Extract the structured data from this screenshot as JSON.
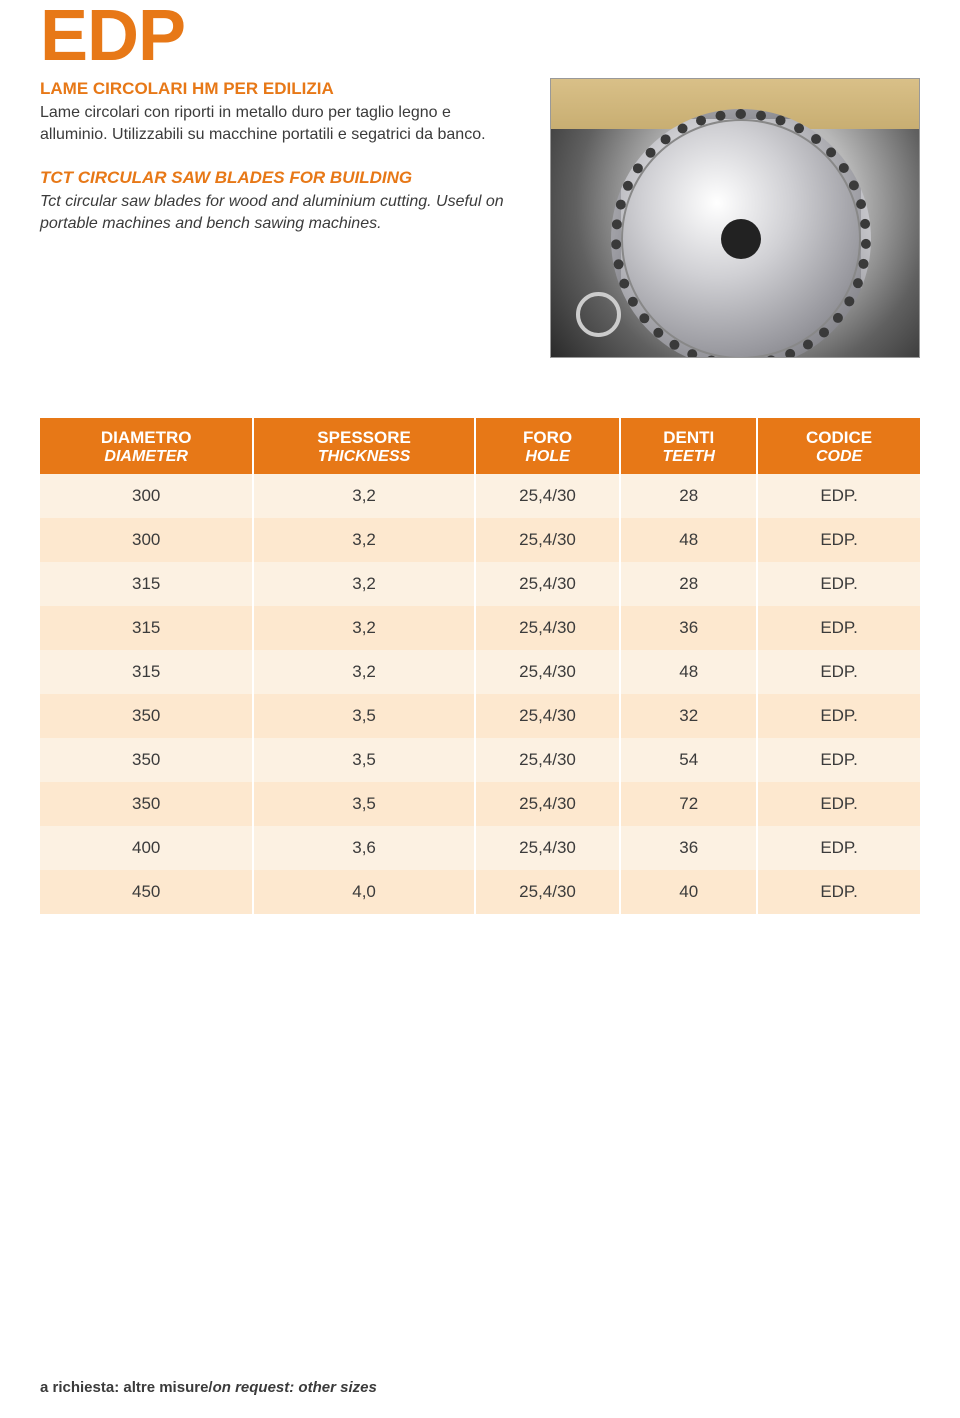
{
  "page": {
    "title": "EDP",
    "subtitle_it": "LAME CIRCOLARI HM PER EDILIZIA",
    "desc_it": "Lame circolari con riporti in metallo duro per taglio legno e alluminio. Utilizzabili su macchine portatili e segatrici da banco.",
    "subtitle_en": "TCT CIRCULAR SAW BLADES FOR BUILDING",
    "desc_en": "Tct circular saw blades for wood and aluminium cutting. Useful on portable machines and bench sawing machines."
  },
  "colors": {
    "accent": "#e77817",
    "row_odd": "#fcf1e2",
    "row_even": "#fde8cf",
    "header_text": "#ffffff",
    "body_text": "#3b3b3b"
  },
  "table": {
    "columns": [
      {
        "label_it": "DIAMETRO",
        "label_en": "DIAMETER"
      },
      {
        "label_it": "SPESSORE",
        "label_en": "THICKNESS"
      },
      {
        "label_it": "FORO",
        "label_en": "HOLE"
      },
      {
        "label_it": "DENTI",
        "label_en": "TEETH"
      },
      {
        "label_it": "CODICE",
        "label_en": "CODE"
      }
    ],
    "rows": [
      [
        "300",
        "3,2",
        "25,4/30",
        "28",
        "EDP."
      ],
      [
        "300",
        "3,2",
        "25,4/30",
        "48",
        "EDP."
      ],
      [
        "315",
        "3,2",
        "25,4/30",
        "28",
        "EDP."
      ],
      [
        "315",
        "3,2",
        "25,4/30",
        "36",
        "EDP."
      ],
      [
        "315",
        "3,2",
        "25,4/30",
        "48",
        "EDP."
      ],
      [
        "350",
        "3,5",
        "25,4/30",
        "32",
        "EDP."
      ],
      [
        "350",
        "3,5",
        "25,4/30",
        "54",
        "EDP."
      ],
      [
        "350",
        "3,5",
        "25,4/30",
        "72",
        "EDP."
      ],
      [
        "400",
        "3,6",
        "25,4/30",
        "36",
        "EDP."
      ],
      [
        "450",
        "4,0",
        "25,4/30",
        "40",
        "EDP."
      ]
    ]
  },
  "footer": {
    "it": "a richiesta: altre misure/",
    "en": "on request: other sizes"
  }
}
